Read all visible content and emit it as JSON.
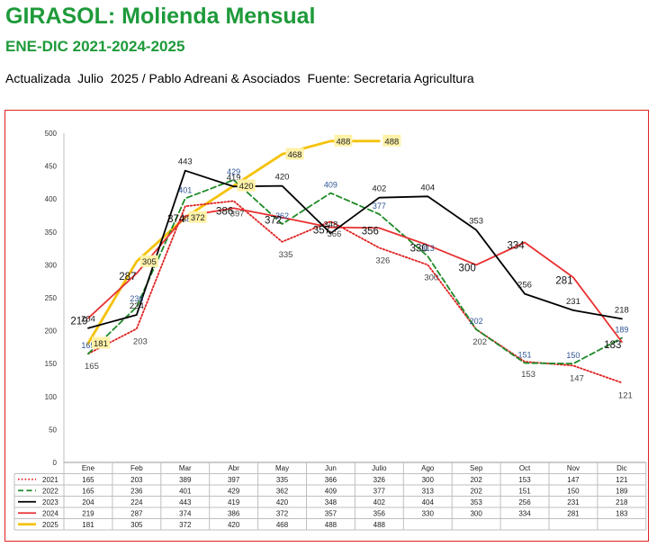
{
  "header": {
    "title": "GIRASOL: Molienda Mensual",
    "subtitle": "ENE-DIC 2021-2024-2025",
    "updated": "Actualizada  Julio  2025 / Pablo Adreani & Asociados  Fuente: Secretaria Agricultura"
  },
  "chart_data": {
    "type": "line",
    "categories": [
      "Ene",
      "Feb",
      "Mar",
      "Abr",
      "May",
      "Jun",
      "Julio",
      "Ago",
      "Sep",
      "Oct",
      "Nov",
      "Dic"
    ],
    "ylim": [
      0,
      500
    ],
    "yticks": [
      0,
      50,
      100,
      150,
      200,
      250,
      300,
      350,
      400,
      450,
      500
    ],
    "grid": false,
    "legend": "table-below",
    "series": [
      {
        "name": "2021",
        "color": "#e02020",
        "style": "dotted",
        "values": [
          165,
          203,
          389,
          397,
          335,
          366,
          326,
          300,
          202,
          153,
          147,
          121
        ]
      },
      {
        "name": "2022",
        "color": "#1f8a28",
        "style": "dashed",
        "values": [
          165,
          236,
          401,
          429,
          362,
          409,
          377,
          313,
          202,
          151,
          150,
          189
        ]
      },
      {
        "name": "2023",
        "color": "#000000",
        "style": "solid",
        "values": [
          204,
          224,
          443,
          419,
          420,
          348,
          402,
          404,
          353,
          256,
          231,
          218
        ]
      },
      {
        "name": "2024",
        "color": "#e83030",
        "style": "solid",
        "values": [
          219,
          287,
          374,
          386,
          372,
          357,
          356,
          330,
          300,
          334,
          281,
          183
        ]
      },
      {
        "name": "2025",
        "color": "#f5c20a",
        "style": "solid-thick",
        "values": [
          181,
          305,
          372,
          420,
          468,
          488,
          488,
          null,
          null,
          null,
          null,
          null
        ]
      }
    ]
  }
}
